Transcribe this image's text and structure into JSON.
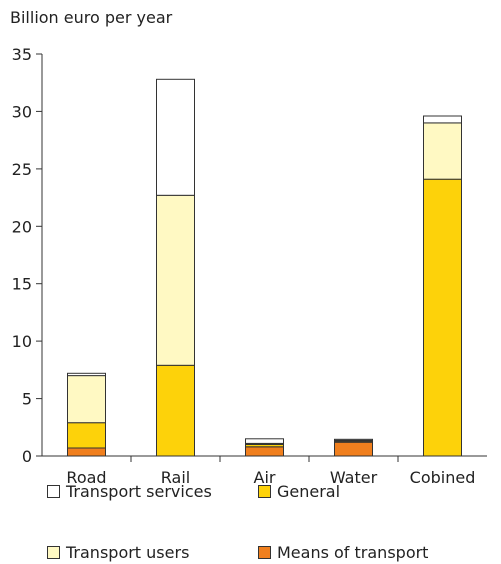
{
  "chart_data": {
    "type": "bar",
    "stacked": true,
    "ylabel": "Billion euro per year",
    "categories": [
      "Road",
      "Rail",
      "Air",
      "Water",
      "Cobined"
    ],
    "ylim": [
      0,
      35
    ],
    "yticks": [
      0,
      5,
      10,
      15,
      20,
      25,
      30,
      35
    ],
    "series": [
      {
        "name": "Means of transport",
        "color": "#f07f1e",
        "values": [
          0.7,
          0,
          0.8,
          1.2,
          0
        ]
      },
      {
        "name": "General",
        "color": "#fdd20a",
        "values": [
          2.2,
          7.9,
          0.2,
          0.1,
          24.1
        ]
      },
      {
        "name": "Transport users",
        "color": "#fff9c3",
        "values": [
          4.1,
          14.8,
          0.1,
          0.05,
          4.9
        ]
      },
      {
        "name": "Transport services",
        "color": "#ffffff",
        "values": [
          0.2,
          10.1,
          0.4,
          0.1,
          0.6
        ]
      }
    ],
    "legend": [
      {
        "label": "Transport services",
        "color": "#ffffff"
      },
      {
        "label": "General",
        "color": "#fdd20a"
      },
      {
        "label": "Transport users",
        "color": "#fff9c3"
      },
      {
        "label": "Means of transport",
        "color": "#f07f1e"
      }
    ]
  }
}
